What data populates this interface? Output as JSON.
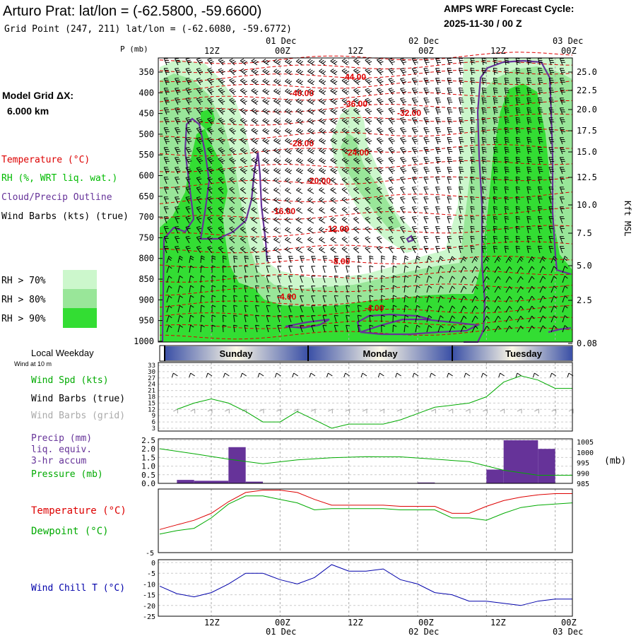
{
  "header": {
    "title": "Arturo Prat:  lat/lon = (-62.5800, -59.6600)",
    "subtitle": "Grid Point (247, 211) lat/lon = (-62.6080, -59.6772)",
    "cycle_label": "AMPS WRF Forecast Cycle:",
    "cycle_value": "2025-11-30 / 00  Z"
  },
  "model_grid": {
    "label": "Model Grid ΔX:",
    "value": "6.000 km"
  },
  "colors": {
    "temperature": "#dd0000",
    "rh": "#00bb00",
    "cloud": "#663399",
    "wind": "#000000",
    "wind_grid": "#aaaaaa",
    "rh70": "#ccf7cc",
    "rh80": "#99e699",
    "rh90": "#33dd33",
    "precip": "#663399",
    "pressure": "#00aa00",
    "windchill": "#0000aa"
  },
  "time_axis": {
    "top_dates": [
      "01 Dec",
      "02 Dec",
      "03 Dec"
    ],
    "bottom_dates": [
      "01 Dec",
      "02 Dec",
      "03 Dec"
    ],
    "ticks": [
      "12Z",
      "00Z",
      "12Z",
      "00Z",
      "12Z",
      "00Z"
    ]
  },
  "cross_section": {
    "pressure_axis_label": "P (mb)",
    "pressure_ticks": [
      "350",
      "400",
      "450",
      "500",
      "550",
      "600",
      "650",
      "700",
      "750",
      "800",
      "850",
      "900",
      "950",
      "1000"
    ],
    "height_axis_label": "Kft MSL",
    "height_ticks": [
      "25.0",
      "22.5",
      "20.0",
      "17.5",
      "15.0",
      "12.5",
      "10.0",
      "7.5",
      "5.0",
      "2.5",
      "0.08"
    ],
    "temperature_labels": [
      "-44.00",
      "-40.00",
      "-36.00",
      "-32.00",
      "-28.00",
      "-24.00",
      "-20.00",
      "-16.00",
      "-12.00",
      "-8.00",
      "-4.00",
      "-4.00"
    ]
  },
  "legend": {
    "temperature": "Temperature (°C)",
    "rh": "RH (%, WRT liq. wat.)",
    "cloud": "Cloud/Precip Outline",
    "wind": "Wind Barbs (kts) (true)",
    "rh70": "RH > 70%",
    "rh80": "RH > 80%",
    "rh90": "RH > 90%"
  },
  "weekday": {
    "label": "Local Weekday",
    "sublabel": "Wind at 10 m",
    "days": [
      "Sunday",
      "Monday",
      "Tuesday"
    ]
  },
  "wind_panel": {
    "speed_label": "Wind Spd (kts)",
    "barbs_label": "Wind Barbs (true)",
    "grid_label": "Wind Barbs (grid)",
    "y_ticks": [
      "33",
      "30",
      "27",
      "24",
      "21",
      "18",
      "15",
      "12",
      "9",
      "6",
      "3"
    ]
  },
  "precip_panel": {
    "label1": "Precip (mm)",
    "label2": "liq. equiv.",
    "label3": "3-hr accum",
    "label4": "Pressure (mb)",
    "y_ticks": [
      "2.5",
      "2.0",
      "1.5",
      "1.0",
      "0.5",
      "0.0"
    ],
    "p_ticks": [
      "1005",
      "1000",
      "995",
      "990",
      "985"
    ],
    "p_unit": "(mb)"
  },
  "temp_panel": {
    "temp_label": "Temperature (°C)",
    "dew_label": "Dewpoint (°C)",
    "y_tick": "-5"
  },
  "chill_panel": {
    "label": "Wind Chill T (°C)",
    "y_ticks": [
      "0",
      "-5",
      "-10",
      "-15",
      "-20",
      "-25"
    ]
  },
  "chart_data": [
    {
      "type": "line",
      "title": "Wind Spd (kts)",
      "x_hours": [
        3,
        6,
        9,
        12,
        15,
        18,
        21,
        24,
        27,
        30,
        33,
        36,
        39,
        42,
        45,
        48,
        51,
        54,
        57,
        60,
        63,
        66,
        69,
        72
      ],
      "y": [
        12,
        15,
        17,
        15,
        11,
        6,
        6,
        11,
        7,
        3,
        5,
        5,
        5,
        7,
        10,
        13,
        14,
        15,
        18,
        25,
        28,
        26,
        22,
        22
      ],
      "ylim": [
        3,
        33
      ]
    },
    {
      "type": "bar",
      "title": "Precip (mm) liq. equiv. 3-hr accum",
      "x_hours": [
        3,
        6,
        9,
        12,
        15,
        18,
        21,
        24,
        27,
        30,
        33,
        36,
        39,
        42,
        45,
        48,
        51,
        54,
        57,
        60,
        63,
        66,
        69,
        72
      ],
      "values": [
        0,
        0.2,
        0.15,
        0.15,
        2.1,
        0.1,
        0,
        0,
        0,
        0,
        0,
        0,
        0,
        0,
        0,
        0.05,
        0,
        0,
        0,
        0.8,
        2.5,
        2.5,
        2.0,
        0
      ],
      "ylim": [
        0,
        2.5
      ]
    },
    {
      "type": "line",
      "title": "Pressure (mb)",
      "x_hours": [
        0,
        6,
        12,
        18,
        24,
        30,
        36,
        42,
        48,
        54,
        60,
        66,
        72
      ],
      "y": [
        1001.6,
        999.2,
        996.6,
        994.4,
        996.3,
        997.3,
        997.8,
        997.7,
        996.6,
        995.4,
        991.3,
        988.9,
        988.9
      ],
      "ylim": [
        985,
        1005
      ]
    },
    {
      "type": "line",
      "title": "Temperature / Dewpoint (°C)",
      "x_hours": [
        0,
        3,
        6,
        9,
        12,
        15,
        18,
        21,
        24,
        27,
        30,
        33,
        36,
        39,
        42,
        45,
        48,
        51,
        54,
        57,
        60,
        63,
        66,
        69,
        72
      ],
      "series": [
        {
          "name": "Temperature",
          "values": [
            -3.0,
            -2.6,
            -2.2,
            -1.6,
            -0.6,
            0.2,
            0.4,
            0.4,
            0.2,
            -0.4,
            -0.9,
            -0.9,
            -0.9,
            -0.9,
            -1.0,
            -1.0,
            -1.0,
            -1.6,
            -1.6,
            -1.0,
            -0.5,
            -0.2,
            0.0,
            0.1,
            0.1
          ]
        },
        {
          "name": "Dewpoint",
          "values": [
            -3.4,
            -3.1,
            -2.9,
            -2.0,
            -0.8,
            -0.1,
            -0.1,
            -0.4,
            -0.7,
            -1.3,
            -1.2,
            -1.2,
            -1.2,
            -1.2,
            -1.3,
            -1.3,
            -1.3,
            -2.0,
            -2.0,
            -2.2,
            -1.6,
            -1.1,
            -0.9,
            -0.8,
            -0.7
          ]
        }
      ],
      "ylim": [
        -5,
        0.5
      ]
    },
    {
      "type": "line",
      "title": "Wind Chill T (°C)",
      "x_hours": [
        0,
        3,
        6,
        9,
        12,
        15,
        18,
        21,
        24,
        27,
        30,
        33,
        36,
        39,
        42,
        45,
        48,
        51,
        54,
        57,
        60,
        63,
        66,
        69,
        72
      ],
      "y": [
        -11,
        -14.5,
        -16,
        -14,
        -10,
        -5,
        -5,
        -8,
        -10,
        -7,
        -1,
        -4,
        -4,
        -3,
        -8,
        -10,
        -14,
        -15,
        -18,
        -18,
        -19,
        -20,
        -18,
        -17,
        -17
      ],
      "ylim": [
        -25,
        0
      ]
    }
  ]
}
